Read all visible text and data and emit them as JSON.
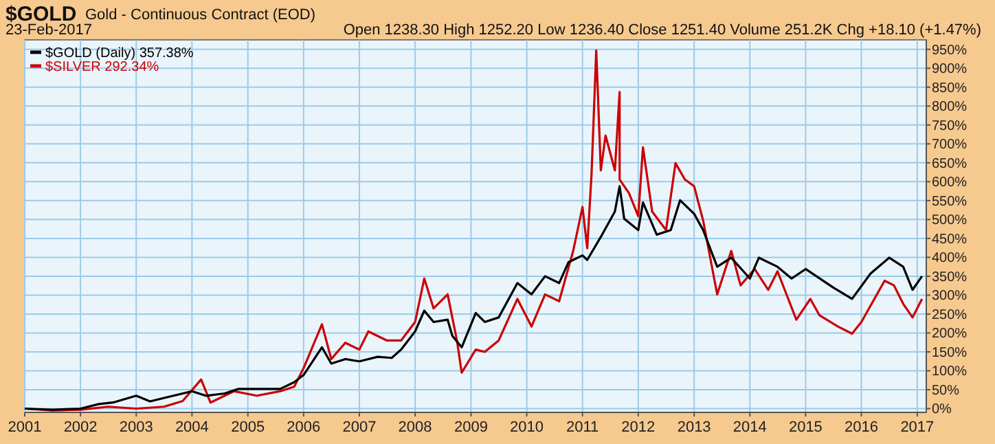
{
  "chart_data": {
    "type": "line",
    "title": "$GOLD",
    "subtitle": "Gold - Continuous Contract (EOD)",
    "annotations": [
      "23-Feb-2017",
      "Open 1238.30  High 1252.20  Low 1236.40  Close 1251.40  Volume 251.2K  Chg +18.10 (+1.47%)"
    ],
    "xlim": [
      "2001-01",
      "2017-03"
    ],
    "xticks": [
      "2001",
      "2002",
      "2003",
      "2004",
      "2005",
      "2006",
      "2007",
      "2008",
      "2009",
      "2010",
      "2011",
      "2012",
      "2013",
      "2014",
      "2015",
      "2016",
      "2017"
    ],
    "ylim": [
      -10,
      975
    ],
    "yticks": [
      {
        "value": 0,
        "label": "0%"
      },
      {
        "value": 50,
        "label": "50%"
      },
      {
        "value": 100,
        "label": "100%"
      },
      {
        "value": 150,
        "label": "150%"
      },
      {
        "value": 200,
        "label": "200%"
      },
      {
        "value": 250,
        "label": "250%"
      },
      {
        "value": 300,
        "label": "300%"
      },
      {
        "value": 350,
        "label": "350%"
      },
      {
        "value": 400,
        "label": "400%"
      },
      {
        "value": 450,
        "label": "450%"
      },
      {
        "value": 500,
        "label": "500%"
      },
      {
        "value": 550,
        "label": "550%"
      },
      {
        "value": 600,
        "label": "600%"
      },
      {
        "value": 650,
        "label": "650%"
      },
      {
        "value": 700,
        "label": "700%"
      },
      {
        "value": 750,
        "label": "750%"
      },
      {
        "value": 800,
        "label": "800%"
      },
      {
        "value": 850,
        "label": "850%"
      },
      {
        "value": 900,
        "label": "900%"
      },
      {
        "value": 950,
        "label": "950%"
      }
    ],
    "grid": true,
    "legend": "top left",
    "line_style": "solid",
    "marker": "none",
    "series": [
      {
        "name": "$SILVER 292.34%",
        "color": "#cc0000",
        "x": [
          "2001-01",
          "2001-07",
          "2002-01",
          "2002-07",
          "2003-01",
          "2003-07",
          "2003-11",
          "2004-03",
          "2004-05",
          "2004-10",
          "2005-03",
          "2005-08",
          "2005-11",
          "2006-01",
          "2006-05",
          "2006-07",
          "2006-10",
          "2007-01",
          "2007-03",
          "2007-07",
          "2007-10",
          "2008-01",
          "2008-03",
          "2008-05",
          "2008-08",
          "2008-10",
          "2008-11",
          "2009-02",
          "2009-04",
          "2009-07",
          "2009-11",
          "2010-02",
          "2010-05",
          "2010-08",
          "2010-11",
          "2011-01",
          "2011-02",
          "2011-03",
          "2011-04",
          "2011-05",
          "2011-06",
          "2011-08",
          "2011-09",
          "2011-09",
          "2011-11",
          "2012-01",
          "2012-02",
          "2012-04",
          "2012-07",
          "2012-09",
          "2012-11",
          "2013-01",
          "2013-03",
          "2013-06",
          "2013-09",
          "2013-11",
          "2014-02",
          "2014-05",
          "2014-07",
          "2014-11",
          "2015-02",
          "2015-04",
          "2015-08",
          "2015-11",
          "2016-01",
          "2016-06",
          "2016-08",
          "2016-10",
          "2016-12",
          "2017-02"
        ],
        "values": [
          0,
          -5,
          -3,
          5,
          0,
          5,
          20,
          77,
          16,
          46,
          34,
          46,
          58,
          107,
          223,
          131,
          174,
          156,
          204,
          180,
          180,
          229,
          344,
          265,
          302,
          180,
          95,
          156,
          150,
          180,
          290,
          217,
          302,
          284,
          417,
          533,
          424,
          618,
          947,
          630,
          722,
          630,
          837,
          606,
          570,
          509,
          691,
          521,
          472,
          649,
          606,
          588,
          497,
          302,
          417,
          326,
          369,
          314,
          363,
          235,
          290,
          247,
          217,
          198,
          229,
          338,
          326,
          277,
          241,
          290
        ]
      },
      {
        "name": "$GOLD (Daily) 357.38%",
        "color": "#000000",
        "x": [
          "2001-01",
          "2001-07",
          "2002-01",
          "2002-05",
          "2002-08",
          "2003-01",
          "2003-04",
          "2003-09",
          "2004-01",
          "2004-04",
          "2004-08",
          "2004-11",
          "2005-04",
          "2005-08",
          "2005-11",
          "2006-01",
          "2006-05",
          "2006-07",
          "2006-10",
          "2007-01",
          "2007-05",
          "2007-08",
          "2007-10",
          "2008-01",
          "2008-03",
          "2008-05",
          "2008-08",
          "2008-09",
          "2008-11",
          "2009-02",
          "2009-04",
          "2009-07",
          "2009-11",
          "2010-02",
          "2010-05",
          "2010-08",
          "2010-10",
          "2011-01",
          "2011-02",
          "2011-05",
          "2011-08",
          "2011-09",
          "2011-10",
          "2012-01",
          "2012-02",
          "2012-05",
          "2012-08",
          "2012-10",
          "2013-01",
          "2013-03",
          "2013-06",
          "2013-09",
          "2014-01",
          "2014-03",
          "2014-07",
          "2014-10",
          "2015-01",
          "2015-07",
          "2015-11",
          "2016-03",
          "2016-07",
          "2016-10",
          "2016-12",
          "2017-02"
        ],
        "values": [
          0,
          -3,
          0,
          12,
          16,
          34,
          19,
          34,
          46,
          34,
          40,
          52,
          52,
          52,
          70,
          89,
          162,
          119,
          131,
          125,
          137,
          134,
          156,
          204,
          259,
          229,
          235,
          192,
          162,
          253,
          229,
          241,
          332,
          302,
          350,
          332,
          387,
          405,
          393,
          454,
          521,
          588,
          502,
          472,
          545,
          460,
          472,
          551,
          515,
          472,
          375,
          399,
          344,
          399,
          375,
          344,
          369,
          320,
          290,
          357,
          399,
          375,
          314,
          350
        ]
      }
    ]
  }
}
